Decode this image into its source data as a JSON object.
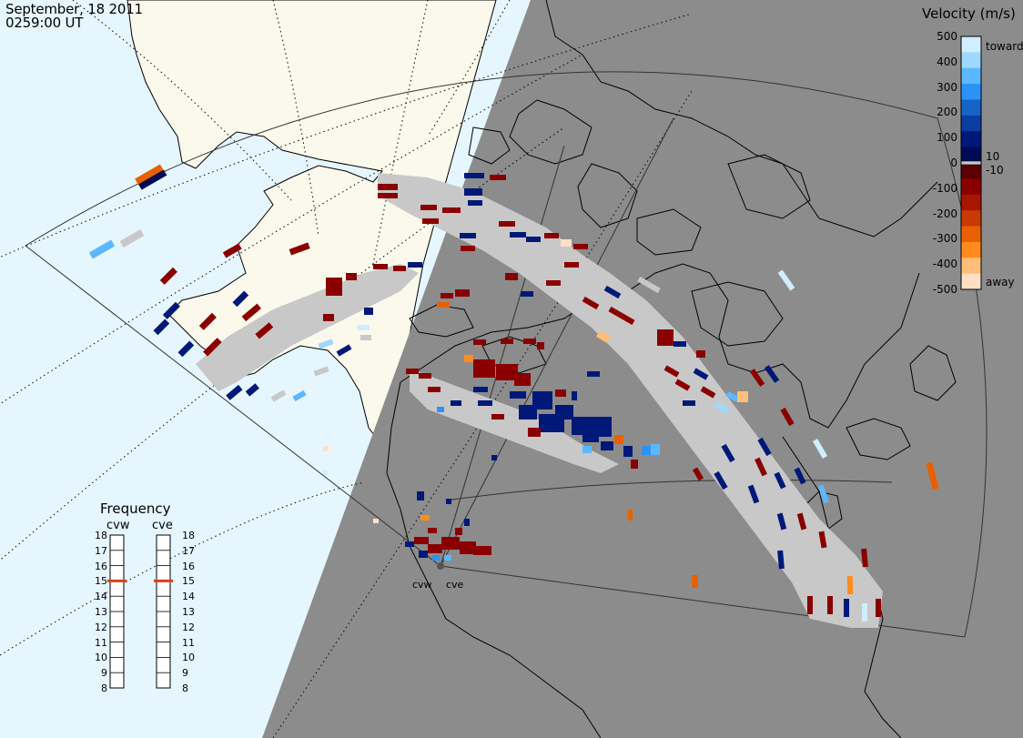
{
  "header": {
    "date": "September, 18 2011",
    "time": "0259:00 UT"
  },
  "colorbar": {
    "title": "Velocity (m/s)",
    "ticks": [
      "500",
      "400",
      "300",
      "200",
      "100",
      "0",
      "-100",
      "-200",
      "-300",
      "-400",
      "-500"
    ],
    "inner_ticks": [
      "10",
      "-10"
    ],
    "toward_label": "toward",
    "away_label": "away",
    "colors_top_to_bottom": [
      "#cfeeff",
      "#9fd8ff",
      "#5bb8ff",
      "#2b93f5",
      "#1565c8",
      "#0a3da0",
      "#001878",
      "#000a55",
      "#5a0000",
      "#8a0000",
      "#a81500",
      "#c83a00",
      "#e86000",
      "#ff8c1a",
      "#ffbd7a",
      "#ffe0c4"
    ],
    "zero_band_color": "#c8c8c8"
  },
  "frequency": {
    "title": "Frequency",
    "radars": [
      {
        "name": "cvw",
        "value_mhz": 15
      },
      {
        "name": "cve",
        "value_mhz": 15
      }
    ],
    "ticks": [
      18,
      17,
      16,
      15,
      14,
      13,
      12,
      11,
      10,
      9,
      8
    ]
  },
  "radars": [
    {
      "code": "cvw"
    },
    {
      "code": "cve"
    }
  ],
  "colors": {
    "night": "#8c8c8c",
    "day_ocean": "#e6f6ff",
    "day_land": "#faf9ec",
    "ground_scatter": "#c8c8c8",
    "coast": "#000000",
    "frequency_marker": "#e04010"
  }
}
